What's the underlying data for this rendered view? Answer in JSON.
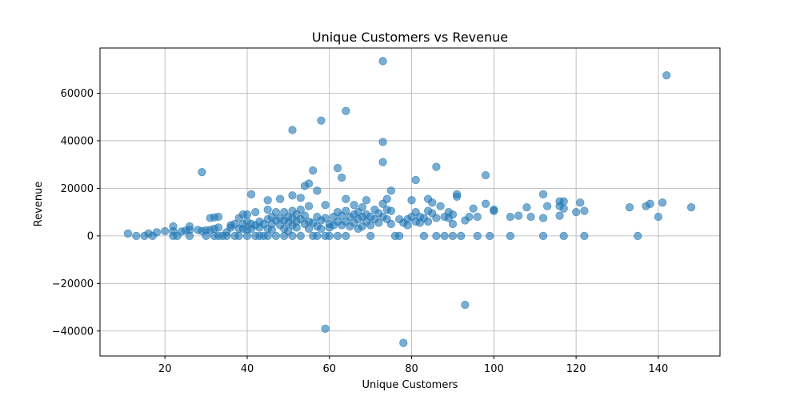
{
  "chart_data": {
    "type": "scatter",
    "title": "Unique Customers vs Revenue",
    "xlabel": "Unique Customers",
    "ylabel": "Revenue",
    "xlim": [
      4.2,
      155
    ],
    "ylim": [
      -50500,
      79000
    ],
    "xticks": [
      20,
      40,
      60,
      80,
      100,
      120,
      140
    ],
    "yticks": [
      -40000,
      -20000,
      0,
      20000,
      40000,
      60000
    ],
    "grid": true,
    "color": "#1f77b4",
    "opacity": 0.6,
    "points": [
      [
        11,
        1000
      ],
      [
        13,
        0
      ],
      [
        15,
        0
      ],
      [
        16,
        1000
      ],
      [
        17,
        0
      ],
      [
        18,
        1500
      ],
      [
        20,
        2000
      ],
      [
        22,
        4000
      ],
      [
        22,
        2000
      ],
      [
        22,
        0
      ],
      [
        23,
        0
      ],
      [
        24,
        1800
      ],
      [
        25,
        2200
      ],
      [
        26,
        4000
      ],
      [
        26,
        2500
      ],
      [
        26,
        0
      ],
      [
        28,
        2500
      ],
      [
        29,
        2000
      ],
      [
        29,
        26800
      ],
      [
        30,
        2300
      ],
      [
        30,
        0
      ],
      [
        31,
        2500
      ],
      [
        31,
        7500
      ],
      [
        32,
        3000
      ],
      [
        32,
        0
      ],
      [
        32,
        7800
      ],
      [
        33,
        8000
      ],
      [
        33,
        3500
      ],
      [
        33,
        0
      ],
      [
        34,
        0
      ],
      [
        35,
        1500
      ],
      [
        35,
        0
      ],
      [
        36,
        3500
      ],
      [
        36,
        4500
      ],
      [
        37,
        5000
      ],
      [
        37,
        0
      ],
      [
        38,
        3000
      ],
      [
        38,
        7500
      ],
      [
        38,
        0
      ],
      [
        39,
        9000
      ],
      [
        39,
        5000
      ],
      [
        39,
        3000
      ],
      [
        40,
        9000
      ],
      [
        40,
        6000
      ],
      [
        40,
        2500
      ],
      [
        40,
        0
      ],
      [
        41,
        17500
      ],
      [
        41,
        5000
      ],
      [
        41,
        3000
      ],
      [
        42,
        0
      ],
      [
        42,
        4500
      ],
      [
        42,
        10000
      ],
      [
        43,
        6000
      ],
      [
        43,
        3500
      ],
      [
        43,
        0
      ],
      [
        44,
        5000
      ],
      [
        44,
        0
      ],
      [
        45,
        11000
      ],
      [
        45,
        15000
      ],
      [
        45,
        7000
      ],
      [
        45,
        3000
      ],
      [
        45,
        0
      ],
      [
        46,
        8000
      ],
      [
        46,
        5000
      ],
      [
        46,
        2500
      ],
      [
        47,
        6500
      ],
      [
        47,
        10000
      ],
      [
        47,
        0
      ],
      [
        48,
        15500
      ],
      [
        48,
        7500
      ],
      [
        48,
        4500
      ],
      [
        49,
        10000
      ],
      [
        49,
        6500
      ],
      [
        49,
        3000
      ],
      [
        49,
        0
      ],
      [
        50,
        8000
      ],
      [
        50,
        5500
      ],
      [
        50,
        2000
      ],
      [
        51,
        44500
      ],
      [
        51,
        17000
      ],
      [
        51,
        10500
      ],
      [
        51,
        7500
      ],
      [
        51,
        4500
      ],
      [
        51,
        0
      ],
      [
        52,
        9000
      ],
      [
        52,
        6000
      ],
      [
        52,
        3500
      ],
      [
        53,
        16000
      ],
      [
        53,
        11000
      ],
      [
        53,
        7000
      ],
      [
        53,
        0
      ],
      [
        54,
        21000
      ],
      [
        54,
        8500
      ],
      [
        54,
        5000
      ],
      [
        55,
        22000
      ],
      [
        55,
        12500
      ],
      [
        55,
        6000
      ],
      [
        55,
        3000
      ],
      [
        56,
        27500
      ],
      [
        56,
        5500
      ],
      [
        56,
        0
      ],
      [
        57,
        19000
      ],
      [
        57,
        8000
      ],
      [
        57,
        4000
      ],
      [
        57,
        0
      ],
      [
        58,
        48500
      ],
      [
        58,
        6500
      ],
      [
        58,
        3000
      ],
      [
        59,
        13000
      ],
      [
        59,
        7500
      ],
      [
        59,
        0
      ],
      [
        59,
        -39000
      ],
      [
        60,
        5000
      ],
      [
        60,
        3500
      ],
      [
        60,
        0
      ],
      [
        61,
        8000
      ],
      [
        61,
        4500
      ],
      [
        62,
        28500
      ],
      [
        62,
        10000
      ],
      [
        62,
        6000
      ],
      [
        62,
        0
      ],
      [
        63,
        24500
      ],
      [
        63,
        8500
      ],
      [
        63,
        4500
      ],
      [
        64,
        52500
      ],
      [
        64,
        15500
      ],
      [
        64,
        10500
      ],
      [
        64,
        6000
      ],
      [
        64,
        0
      ],
      [
        65,
        8000
      ],
      [
        65,
        4000
      ],
      [
        66,
        13000
      ],
      [
        66,
        9000
      ],
      [
        66,
        5500
      ],
      [
        67,
        10000
      ],
      [
        67,
        7000
      ],
      [
        67,
        3000
      ],
      [
        68,
        12000
      ],
      [
        68,
        8000
      ],
      [
        68,
        4000
      ],
      [
        69,
        9000
      ],
      [
        69,
        6000
      ],
      [
        69,
        15000
      ],
      [
        70,
        8000
      ],
      [
        70,
        4500
      ],
      [
        70,
        0
      ],
      [
        71,
        11000
      ],
      [
        71,
        7000
      ],
      [
        72,
        9500
      ],
      [
        72,
        5500
      ],
      [
        73,
        73500
      ],
      [
        73,
        39500
      ],
      [
        73,
        31000
      ],
      [
        73,
        13500
      ],
      [
        73,
        8000
      ],
      [
        74,
        15500
      ],
      [
        74,
        11000
      ],
      [
        74,
        7000
      ],
      [
        75,
        19000
      ],
      [
        75,
        10500
      ],
      [
        75,
        5000
      ],
      [
        76,
        0
      ],
      [
        77,
        7000
      ],
      [
        77,
        0
      ],
      [
        78,
        5500
      ],
      [
        78,
        -45000
      ],
      [
        79,
        7000
      ],
      [
        79,
        4500
      ],
      [
        80,
        15000
      ],
      [
        80,
        8000
      ],
      [
        81,
        23500
      ],
      [
        81,
        10000
      ],
      [
        81,
        6000
      ],
      [
        82,
        8000
      ],
      [
        82,
        5500
      ],
      [
        83,
        7500
      ],
      [
        83,
        0
      ],
      [
        84,
        15500
      ],
      [
        84,
        10500
      ],
      [
        84,
        6000
      ],
      [
        85,
        14000
      ],
      [
        85,
        9500
      ],
      [
        86,
        29000
      ],
      [
        86,
        7500
      ],
      [
        86,
        0
      ],
      [
        87,
        12500
      ],
      [
        88,
        8000
      ],
      [
        88,
        0
      ],
      [
        89,
        10000
      ],
      [
        89,
        7500
      ],
      [
        90,
        9000
      ],
      [
        90,
        5000
      ],
      [
        90,
        0
      ],
      [
        91,
        17500
      ],
      [
        91,
        16500
      ],
      [
        92,
        0
      ],
      [
        93,
        6500
      ],
      [
        93,
        -29000
      ],
      [
        94,
        8000
      ],
      [
        95,
        11500
      ],
      [
        96,
        8000
      ],
      [
        96,
        0
      ],
      [
        98,
        25500
      ],
      [
        98,
        13500
      ],
      [
        99,
        0
      ],
      [
        100,
        11000
      ],
      [
        100,
        10500
      ],
      [
        104,
        8000
      ],
      [
        104,
        0
      ],
      [
        106,
        8500
      ],
      [
        108,
        12000
      ],
      [
        109,
        8000
      ],
      [
        112,
        17500
      ],
      [
        112,
        7500
      ],
      [
        112,
        0
      ],
      [
        113,
        12500
      ],
      [
        116,
        14500
      ],
      [
        116,
        12500
      ],
      [
        116,
        8500
      ],
      [
        117,
        14500
      ],
      [
        117,
        11500
      ],
      [
        117,
        0
      ],
      [
        120,
        10000
      ],
      [
        121,
        14000
      ],
      [
        122,
        10500
      ],
      [
        122,
        0
      ],
      [
        133,
        12000
      ],
      [
        135,
        0
      ],
      [
        137,
        12500
      ],
      [
        138,
        13500
      ],
      [
        140,
        8000
      ],
      [
        141,
        14000
      ],
      [
        142,
        67500
      ],
      [
        148,
        12000
      ]
    ]
  }
}
